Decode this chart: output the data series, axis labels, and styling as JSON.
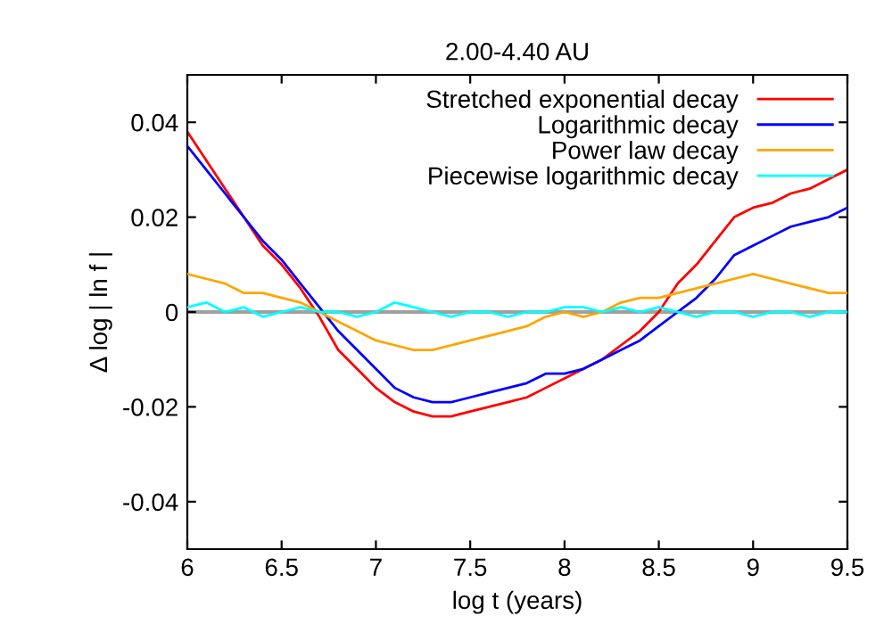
{
  "chart_data": {
    "type": "line",
    "title": "2.00-4.40 AU",
    "xlabel": "log t (years)",
    "ylabel": "Δ log | ln f |",
    "x": [
      6.0,
      6.1,
      6.2,
      6.3,
      6.4,
      6.5,
      6.6,
      6.7,
      6.8,
      6.9,
      7.0,
      7.1,
      7.2,
      7.3,
      7.4,
      7.5,
      7.6,
      7.7,
      7.8,
      7.9,
      8.0,
      8.1,
      8.2,
      8.3,
      8.4,
      8.5,
      8.6,
      8.7,
      8.8,
      8.9,
      9.0,
      9.1,
      9.2,
      9.3,
      9.4,
      9.5
    ],
    "series": [
      {
        "name": "Stretched exponential decay",
        "color": "#ff0000",
        "values": [
          0.038,
          0.032,
          0.026,
          0.02,
          0.014,
          0.01,
          0.005,
          -0.001,
          -0.008,
          -0.012,
          -0.016,
          -0.019,
          -0.021,
          -0.022,
          -0.022,
          -0.021,
          -0.02,
          -0.019,
          -0.018,
          -0.016,
          -0.014,
          -0.012,
          -0.01,
          -0.007,
          -0.004,
          0.0,
          0.006,
          0.01,
          0.015,
          0.02,
          0.022,
          0.023,
          0.025,
          0.026,
          0.028,
          0.03
        ]
      },
      {
        "name": "Logarithmic decay",
        "color": "#0000ff",
        "values": [
          0.035,
          0.03,
          0.025,
          0.02,
          0.015,
          0.011,
          0.006,
          0.001,
          -0.004,
          -0.008,
          -0.012,
          -0.016,
          -0.018,
          -0.019,
          -0.019,
          -0.018,
          -0.017,
          -0.016,
          -0.015,
          -0.013,
          -0.013,
          -0.012,
          -0.01,
          -0.008,
          -0.006,
          -0.003,
          0.0,
          0.003,
          0.007,
          0.012,
          0.014,
          0.016,
          0.018,
          0.019,
          0.02,
          0.022
        ]
      },
      {
        "name": "Power law decay",
        "color": "#ffa500",
        "values": [
          0.008,
          0.007,
          0.006,
          0.004,
          0.004,
          0.003,
          0.002,
          0.0,
          -0.002,
          -0.004,
          -0.006,
          -0.007,
          -0.008,
          -0.008,
          -0.007,
          -0.006,
          -0.005,
          -0.004,
          -0.003,
          -0.001,
          0.0,
          -0.001,
          0.0,
          0.002,
          0.003,
          0.003,
          0.004,
          0.005,
          0.006,
          0.007,
          0.008,
          0.007,
          0.006,
          0.005,
          0.004,
          0.004
        ]
      },
      {
        "name": "Piecewise logarithmic decay",
        "color": "#00ffff",
        "values": [
          0.001,
          0.002,
          0.0,
          0.001,
          -0.001,
          0.0,
          0.001,
          0.0,
          0.0,
          -0.001,
          0.0,
          0.002,
          0.001,
          0.0,
          -0.001,
          0.0,
          0.0,
          -0.001,
          0.0,
          0.0,
          0.001,
          0.001,
          0.0,
          0.001,
          0.0,
          0.001,
          0.0,
          -0.001,
          0.0,
          0.0,
          -0.001,
          0.0,
          0.0,
          -0.001,
          0.0,
          0.0
        ]
      }
    ],
    "xlim": [
      6,
      9.5
    ],
    "xticks": [
      6,
      6.5,
      7,
      7.5,
      8,
      8.5,
      9,
      9.5
    ],
    "ylim": [
      -0.05,
      0.05
    ],
    "yticks": [
      -0.04,
      -0.02,
      {
        "value": 0,
        "label": "0"
      },
      0.02,
      0.04
    ],
    "ref_lines": [
      {
        "axis": "y",
        "value": 0,
        "color": "#a0a0a0"
      }
    ],
    "grid": false,
    "legend": "top right",
    "marker": "none",
    "line_style": "solid"
  }
}
